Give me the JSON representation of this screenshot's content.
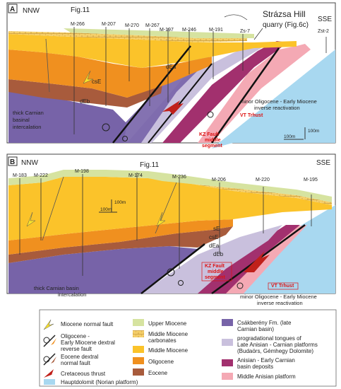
{
  "panel_a": {
    "letter": "A",
    "left_dir": "NNW",
    "right_dir": "SSE",
    "fig_ref": "Fig.11",
    "wells": [
      "M-266",
      "M-207",
      "M-270",
      "M-267",
      "M-197",
      "M-246",
      "M-191",
      "Zs-7",
      "Zst-2"
    ],
    "hill_label": "Strázsa Hill",
    "hill_label2": "quarry (Fig.6c)",
    "unit_labels": [
      "csE",
      "dEb",
      "dEa"
    ],
    "callout_left": [
      "thick Carnian",
      "basinal",
      "intercalation"
    ],
    "kz_fault": [
      "KZ Fault",
      "middle",
      "segment"
    ],
    "vt_thrust": "VT Trhust",
    "reactivation": [
      "minor Oligocene - Early Miocene",
      "inverse reactivation"
    ],
    "scale_v": "100m",
    "scale_h": "100m"
  },
  "panel_b": {
    "letter": "B",
    "left_dir": "NNW",
    "right_dir": "SSE",
    "fig_ref": "Fig.11",
    "wells": [
      "M-183",
      "M-222",
      "M-198",
      "M-174",
      "M-236",
      "M-206",
      "M-220",
      "M-195"
    ],
    "unit_labels": [
      "sE",
      "csE",
      "dEa",
      "dEb"
    ],
    "scale_h": "100m",
    "scale_v": "100m",
    "callout_left": [
      "thick Carnian basin",
      "intercalation"
    ],
    "kz_fault": [
      "KZ Fault",
      "middle",
      "segment"
    ],
    "vt_thrust": "VT Trhust",
    "reactivation": [
      "minor Oligocene - Early Miocene",
      "inverse reactivation"
    ]
  },
  "legend": {
    "faults": [
      {
        "label": [
          "Miocene normal fault"
        ],
        "icon": "normal-fault-yellow-arrow"
      },
      {
        "label": [
          "Oligocene -",
          "Early Miocene dextral",
          "reverse fault"
        ],
        "icon": "dextral-reverse-fault"
      },
      {
        "label": [
          "Eocene dextral",
          "normal fault"
        ],
        "icon": "dextral-normal-fault"
      },
      {
        "label": [
          "Cretaceous thrust"
        ],
        "icon": "thrust-red-arrow"
      }
    ],
    "units_mid": [
      {
        "label": [
          "Upper Miocene"
        ],
        "color": "#d6e3a0"
      },
      {
        "label": [
          "Middle Miocene",
          "carbonates"
        ],
        "color": "#f5cf6a"
      },
      {
        "label": [
          "Middle Miocene"
        ],
        "color": "#fbc32a"
      },
      {
        "label": [
          "Oligocene"
        ],
        "color": "#f0901f"
      },
      {
        "label": [
          "Eocene"
        ],
        "color": "#a85b3c"
      }
    ],
    "units_right": [
      {
        "label": [
          "Csákberény Fm. (late",
          "Carnian basin)"
        ],
        "color": "#7763a8"
      },
      {
        "label": [
          "progradational tongues of",
          "Late Anisian - Carnian platforms",
          "(Budaörs, Gémhegy Dolomite)"
        ],
        "color": "#c9c0dd"
      },
      {
        "label": [
          "Anisian - Early Carnian",
          "basin deposits"
        ],
        "color": "#a2306e"
      },
      {
        "label": [
          "Middle Anisian platform"
        ],
        "color": "#f4a9b4"
      }
    ],
    "hauptdolomit": {
      "label": "Hauptdolomit (Norian platform)",
      "color": "#a8d8f0"
    }
  }
}
